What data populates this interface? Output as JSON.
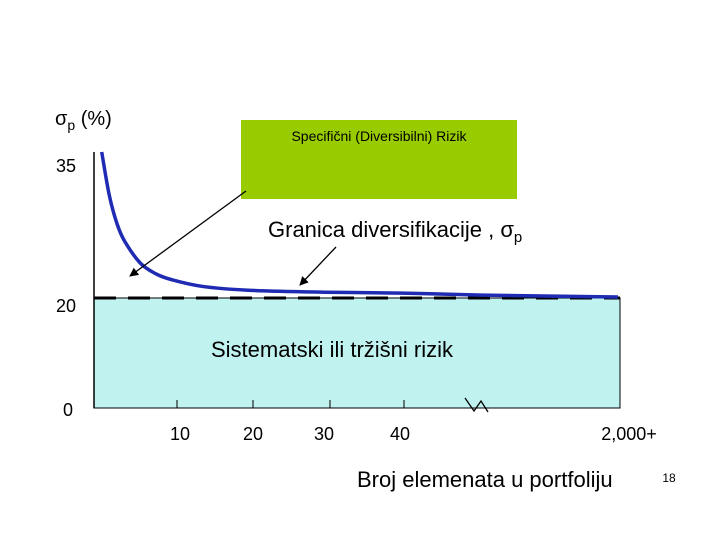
{
  "chart_data": {
    "type": "line",
    "y_axis": {
      "symbol": "σ",
      "subscript": "p",
      "unit": "(%)",
      "ticks": [
        "35",
        "20",
        "0"
      ]
    },
    "x_axis": {
      "ticks": [
        "10",
        "20",
        "30",
        "40",
        "2,000+"
      ],
      "label": "Broj elemenata u portfoliju",
      "axis_break": true
    },
    "series": [
      {
        "name": "Granica diversifikacije",
        "x": [
          1,
          2,
          3,
          4,
          6,
          8,
          10,
          14,
          20,
          30,
          40,
          100,
          2000
        ],
        "y": [
          35,
          30.5,
          27.6,
          25.8,
          23.6,
          22.5,
          21.9,
          21.2,
          20.8,
          20.6,
          20.5,
          20.3,
          20.1
        ]
      }
    ],
    "regions": {
      "specific_risk": {
        "label": "Specifični (Diversibilni) Rizik",
        "color": "#99cc00"
      },
      "systematic_risk": {
        "label": "Sistematski ili tržišni rizik",
        "color": "#c0f2f0"
      }
    },
    "annotation": {
      "label": "Granica diversifikacije ,",
      "symbol": "σ",
      "subscript": "p"
    },
    "line_color": "#1f2bb3",
    "dash_color": "#000000"
  },
  "slide_number": "18"
}
